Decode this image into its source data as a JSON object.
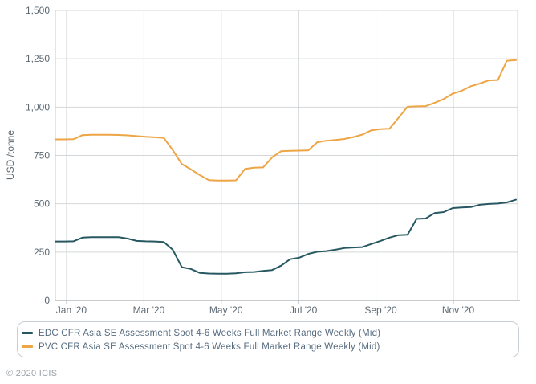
{
  "chart_data": {
    "type": "line",
    "ylabel": "USD /tonne",
    "ylim": [
      0,
      1500
    ],
    "grid": true,
    "legend_position": "bottom",
    "x_unit": "weekly assessments, Jan 2020 - Dec 2020",
    "y_ticks": [
      {
        "label": "0",
        "value": 0
      },
      {
        "label": "250",
        "value": 250
      },
      {
        "label": "500",
        "value": 500
      },
      {
        "label": "750",
        "value": 750
      },
      {
        "label": "1,000",
        "value": 1000
      },
      {
        "label": "1,250",
        "value": 1250
      },
      {
        "label": "1,500",
        "value": 1500
      }
    ],
    "x_ticks": [
      {
        "label": "Jan '20",
        "week": 1.24
      },
      {
        "label": "Mar '20",
        "week": 9.81
      },
      {
        "label": "May '20",
        "week": 18.37
      },
      {
        "label": "Jul '20",
        "week": 26.94
      },
      {
        "label": "Sep '20",
        "week": 35.5
      },
      {
        "label": "Nov '20",
        "week": 44.07
      }
    ],
    "series": [
      {
        "name": "EDC CFR Asia SE Assessment Spot 4-6 Weeks Full Market Range Weekly (Mid)",
        "color": "#275862",
        "values": [
          305,
          305,
          306,
          325,
          327,
          327,
          327,
          327,
          320,
          308,
          306,
          305,
          302,
          262,
          172,
          163,
          142,
          139,
          138,
          138,
          140,
          146,
          147,
          153,
          157,
          180,
          213,
          221,
          240,
          252,
          255,
          262,
          271,
          274,
          276,
          292,
          308,
          325,
          338,
          340,
          422,
          424,
          452,
          457,
          478,
          481,
          483,
          495,
          499,
          501,
          507,
          521
        ]
      },
      {
        "name": "PVC CFR Asia SE Assessment Spot 4-6 Weeks Full Market Range Weekly (Mid)",
        "color": "#eda546",
        "values": [
          833,
          833,
          834,
          855,
          857,
          857,
          857,
          856,
          854,
          850,
          847,
          844,
          841,
          778,
          705,
          678,
          648,
          622,
          620,
          620,
          621,
          680,
          687,
          688,
          740,
          772,
          774,
          775,
          776,
          818,
          826,
          830,
          835,
          845,
          858,
          880,
          886,
          888,
          945,
          1002,
          1004,
          1005,
          1022,
          1042,
          1070,
          1085,
          1108,
          1122,
          1138,
          1140,
          1240,
          1243
        ]
      }
    ]
  },
  "legend": {
    "items": [
      {
        "label": "EDC CFR Asia SE Assessment Spot 4-6 Weeks Full Market Range Weekly (Mid)",
        "color": "#275862"
      },
      {
        "label": "PVC CFR Asia SE Assessment Spot 4-6 Weeks Full Market Range Weekly (Mid)",
        "color": "#eda546"
      }
    ]
  },
  "footer": {
    "copyright": "© 2020 ICIS"
  },
  "colors": {
    "tick_label": "#5d6973",
    "grid_h": "#d4d7d9",
    "grid_v": "#ccd0d3",
    "axis": "#b5babd",
    "border": "#c6cacd"
  }
}
